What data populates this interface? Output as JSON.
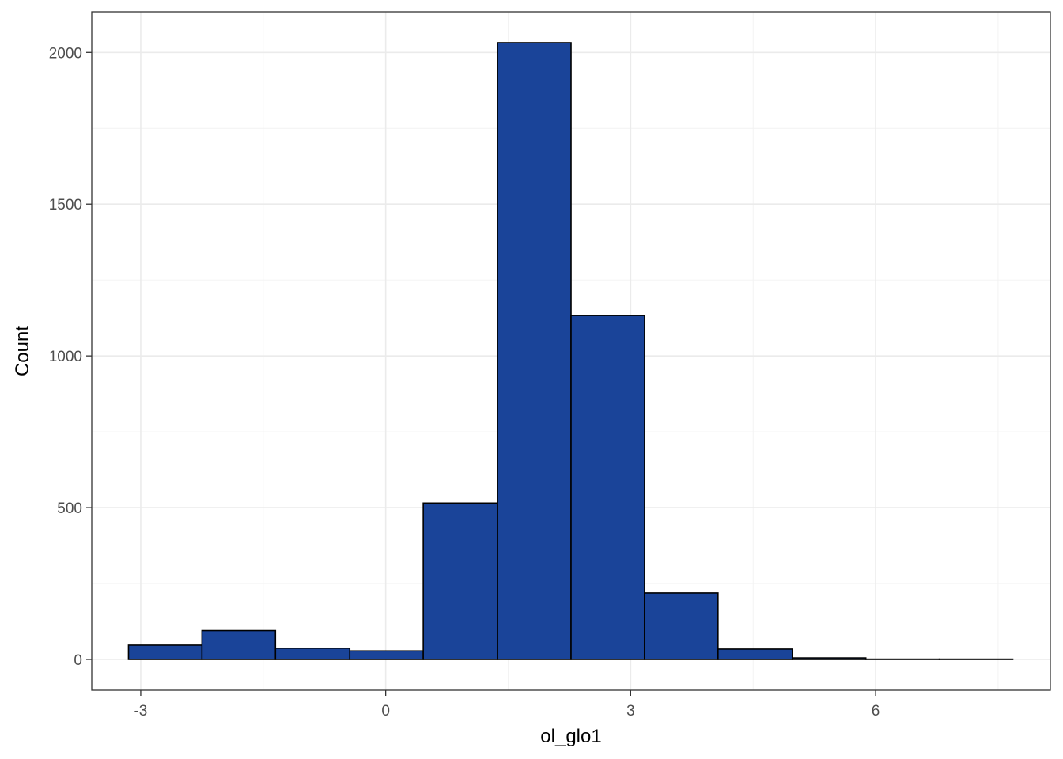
{
  "chart_data": {
    "type": "bar",
    "xlabel": "ol_glo1",
    "ylabel": "Count",
    "title": "",
    "bins": [
      {
        "x0": -3.15,
        "x1": -2.25,
        "count": 47
      },
      {
        "x0": -2.25,
        "x1": -1.35,
        "count": 95
      },
      {
        "x0": -1.35,
        "x1": -0.44,
        "count": 37
      },
      {
        "x0": -0.44,
        "x1": 0.46,
        "count": 28
      },
      {
        "x0": 0.46,
        "x1": 1.37,
        "count": 515
      },
      {
        "x0": 1.37,
        "x1": 2.27,
        "count": 2032
      },
      {
        "x0": 2.27,
        "x1": 3.17,
        "count": 1133
      },
      {
        "x0": 3.17,
        "x1": 4.07,
        "count": 219
      },
      {
        "x0": 4.07,
        "x1": 4.98,
        "count": 34
      },
      {
        "x0": 4.98,
        "x1": 5.88,
        "count": 5
      },
      {
        "x0": 5.88,
        "x1": 6.78,
        "count": 1
      },
      {
        "x0": 6.78,
        "x1": 7.68,
        "count": 1
      }
    ],
    "xlim": [
      -3.6,
      8.14
    ],
    "ylim": [
      -101.6,
      2133.6
    ],
    "x_ticks": [
      -3,
      0,
      3,
      6
    ],
    "x_tick_labels": [
      "-3",
      "0",
      "3",
      "6"
    ],
    "y_ticks": [
      0,
      500,
      1000,
      1500,
      2000
    ],
    "y_tick_labels": [
      "0",
      "500",
      "1000",
      "1500",
      "2000"
    ],
    "grid": true,
    "bar_fill": "#1a4499",
    "bar_outline": "#000000",
    "panel_border": "#333333",
    "grid_color": "#ebebeb"
  }
}
